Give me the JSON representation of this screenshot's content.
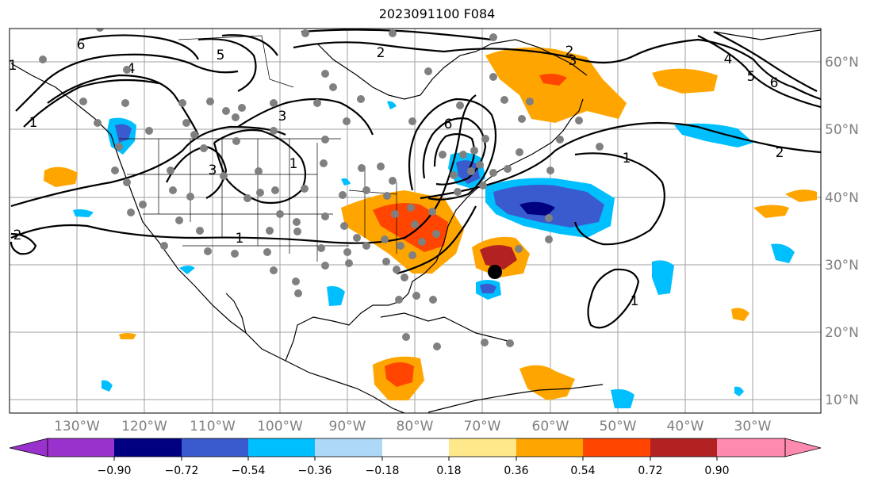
{
  "title": "2023091100 F084",
  "map": {
    "lon_labels": [
      "130°W",
      "120°W",
      "110°W",
      "100°W",
      "90°W",
      "80°W",
      "70°W",
      "60°W",
      "50°W",
      "40°W",
      "30°W"
    ],
    "lat_labels": [
      "60°N",
      "50°N",
      "40°N",
      "30°N",
      "20°N",
      "10°N"
    ],
    "grid_color": "#a0a0a0",
    "contour_labels": [
      "1",
      "2",
      "3",
      "4",
      "5",
      "6",
      "1",
      "2",
      "3",
      "6",
      "2",
      "3",
      "4",
      "5",
      "6",
      "1",
      "2",
      "1",
      "1",
      "1"
    ],
    "storm_marker_color": "#000000",
    "station_marker_color": "#808080"
  },
  "colorbar": {
    "colors": [
      "#9932cc",
      "#000080",
      "#3a5bcd",
      "#00bfff",
      "#add8f6",
      "#ffffff",
      "#ffffff",
      "#ffe88a",
      "#ffa500",
      "#ff4500",
      "#b22222",
      "#ff8ab0"
    ],
    "tick_labels": [
      "−0.90",
      "−0.72",
      "−0.54",
      "−0.36",
      "−0.18",
      "0.18",
      "0.36",
      "0.54",
      "0.72",
      "0.90"
    ]
  }
}
